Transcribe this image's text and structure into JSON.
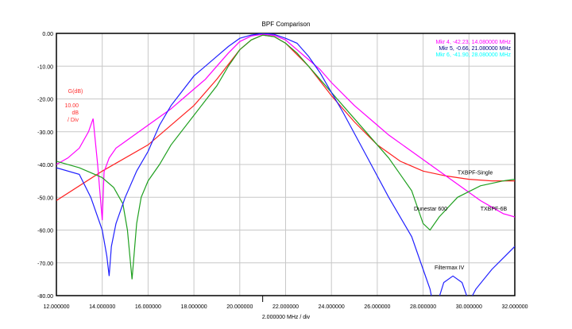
{
  "chart_data": {
    "type": "line",
    "title": "BPF Comparison",
    "xlabel": "2.000000 MHz / div",
    "ylabel": "G(dB)",
    "scale_label": [
      "10.00",
      "dB",
      "/ Div"
    ],
    "xlim": [
      12,
      32
    ],
    "ylim": [
      -80,
      0
    ],
    "grid": true,
    "x_ticks": [
      "12.000000",
      "14.000000",
      "16.000000",
      "18.000000",
      "20.000000",
      "22.000000",
      "24.000000",
      "26.000000",
      "28.000000",
      "30.000000",
      "32.000000"
    ],
    "y_ticks": [
      "0.00",
      "-10.00",
      "-20.00",
      "-30.00",
      "-40.00",
      "-50.00",
      "-60.00",
      "-70.00",
      "-80.00"
    ],
    "markers": [
      {
        "text": "Mkr 4, -42.23, 14.080000 MHz",
        "color": "#ff00ff"
      },
      {
        "text": "Mkr 5, -0.66, 21.080000 MHz",
        "color": "#000080"
      },
      {
        "text": "Mkr 6, -41.90, 28.080000 MHz",
        "color": "#00ffff"
      }
    ],
    "series": [
      {
        "name": "TXBPF-Single",
        "color": "#ff2020",
        "label_at": [
          29.5,
          -43
        ],
        "x": [
          12,
          14,
          16,
          18,
          19,
          20,
          20.5,
          21,
          21.5,
          22,
          23,
          24,
          25,
          26,
          27,
          28,
          29,
          30,
          31,
          32
        ],
        "y": [
          -51,
          -42,
          -34,
          -22,
          -14,
          -5,
          -2,
          -0.5,
          -1,
          -3,
          -10,
          -19,
          -27,
          -34,
          -39,
          -42,
          -43.5,
          -44.5,
          -45,
          -45
        ]
      },
      {
        "name": "TXBPF-6B",
        "color": "#ff00ff",
        "label_at": [
          30.5,
          -54
        ],
        "x": [
          12,
          12.5,
          13,
          13.4,
          13.6,
          13.8,
          14,
          14.08,
          14.3,
          14.6,
          15,
          16,
          17,
          17.5,
          18.5,
          19,
          19.5,
          20,
          20.5,
          21,
          21.5,
          22,
          22.5,
          23,
          23.5,
          24,
          25,
          26,
          26.5,
          27.5,
          28.5,
          29.5,
          30.5,
          31.5,
          32
        ],
        "y": [
          -40,
          -38,
          -35,
          -30,
          -26,
          -40,
          -57,
          -42.2,
          -38,
          -35,
          -33,
          -28,
          -23,
          -20,
          -14,
          -10,
          -6,
          -2.5,
          -0.8,
          -0.3,
          -0.6,
          -2,
          -5,
          -8,
          -11,
          -15,
          -22,
          -28,
          -31,
          -36,
          -41,
          -46,
          -51,
          -55,
          -56
        ]
      },
      {
        "name": "Dunestar 600",
        "color": "#20a020",
        "label_at": [
          27.6,
          -54
        ],
        "x": [
          12,
          13,
          14,
          14.5,
          14.9,
          15.1,
          15.3,
          15.5,
          15.7,
          16,
          16.5,
          17,
          18,
          19,
          19.5,
          20,
          20.5,
          21,
          21.5,
          22,
          22.5,
          23.5,
          24.5,
          25.5,
          26.5,
          27.5,
          28,
          28.3,
          28.7,
          29.5,
          30.5,
          31.5,
          32
        ],
        "y": [
          -39,
          -41,
          -44,
          -47,
          -52,
          -60,
          -75,
          -58,
          -50,
          -45,
          -40,
          -34,
          -25,
          -16,
          -10,
          -5,
          -2,
          -0.5,
          -1,
          -3,
          -6,
          -14,
          -22,
          -30,
          -38,
          -48,
          -58,
          -60,
          -56,
          -50,
          -46.5,
          -45,
          -44.5
        ]
      },
      {
        "name": "Filtermax IV",
        "color": "#2020ff",
        "label_at": [
          28.5,
          -72
        ],
        "x": [
          12,
          13,
          13.5,
          14,
          14.2,
          14.3,
          14.4,
          14.6,
          15,
          15.5,
          16,
          16.5,
          17,
          18,
          19,
          19.5,
          20,
          20.5,
          21,
          21.5,
          22,
          22.5,
          23,
          23.5,
          24,
          24.5,
          25.5,
          26.5,
          27.5,
          28,
          28.3,
          28.5,
          28.9,
          29.3,
          29.7,
          30,
          30.3,
          31,
          32
        ],
        "y": [
          -41,
          -43,
          -50,
          -60,
          -68,
          -74,
          -65,
          -58,
          -50,
          -42,
          -36,
          -28,
          -22,
          -13,
          -7,
          -4,
          -1.5,
          -0.5,
          0,
          -0.3,
          -1.5,
          -3,
          -7,
          -12,
          -18,
          -24,
          -37,
          -50,
          -62,
          -72,
          -78,
          -85,
          -76,
          -74,
          -76,
          -82,
          -78,
          -72,
          -65
        ]
      }
    ]
  }
}
